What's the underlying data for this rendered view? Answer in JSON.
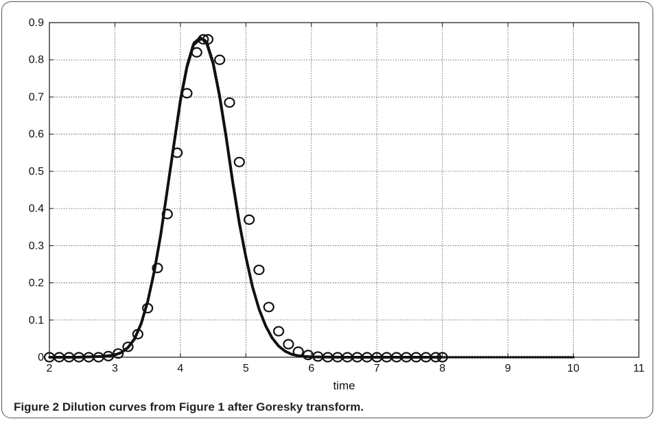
{
  "figure": {
    "label": "Figure 2",
    "caption": "Dilution curves from Figure 1 after Goresky transform."
  },
  "chart_data": {
    "type": "line",
    "title": "",
    "xlabel": "time",
    "ylabel": "",
    "xlim": [
      2,
      11
    ],
    "ylim": [
      0,
      0.9
    ],
    "xticks": [
      2,
      3,
      4,
      5,
      6,
      7,
      8,
      9,
      10,
      11
    ],
    "yticks": [
      0,
      0.1,
      0.2,
      0.3,
      0.4,
      0.5,
      0.6,
      0.7,
      0.8,
      0.9
    ],
    "grid": true,
    "legend": "none",
    "series": [
      {
        "style": "solid-line",
        "color": "#111111",
        "x": [
          2.0,
          2.4,
          2.8,
          3.0,
          3.1,
          3.2,
          3.3,
          3.4,
          3.5,
          3.6,
          3.7,
          3.8,
          3.9,
          4.0,
          4.1,
          4.2,
          4.3,
          4.35,
          4.4,
          4.5,
          4.6,
          4.7,
          4.8,
          4.9,
          5.0,
          5.1,
          5.2,
          5.3,
          5.4,
          5.5,
          5.6,
          5.7,
          5.8,
          5.9,
          6.0,
          6.5,
          7.0,
          8.0
        ],
        "y": [
          0.0,
          0.0,
          0.002,
          0.006,
          0.013,
          0.026,
          0.05,
          0.09,
          0.15,
          0.23,
          0.33,
          0.45,
          0.57,
          0.69,
          0.78,
          0.84,
          0.855,
          0.855,
          0.845,
          0.79,
          0.7,
          0.59,
          0.47,
          0.36,
          0.27,
          0.19,
          0.13,
          0.085,
          0.052,
          0.03,
          0.016,
          0.008,
          0.004,
          0.002,
          0.001,
          0.0,
          0.0,
          0.0
        ]
      },
      {
        "style": "dotted",
        "color": "#111111",
        "x": [
          2.0,
          2.5,
          2.9,
          3.1,
          3.2,
          3.3,
          3.4,
          3.5,
          3.6,
          3.7,
          3.8,
          3.9,
          4.0,
          4.1,
          4.2,
          4.3,
          4.4,
          4.5,
          4.6,
          4.7,
          4.8,
          4.9,
          5.0,
          5.1,
          5.2,
          5.3,
          5.4,
          5.5,
          5.6,
          5.7,
          5.8,
          5.9,
          6.0,
          6.5,
          7.0,
          8.0,
          9.0,
          10.0
        ],
        "y": [
          0.0,
          0.0,
          0.003,
          0.012,
          0.025,
          0.048,
          0.088,
          0.148,
          0.228,
          0.33,
          0.45,
          0.575,
          0.695,
          0.785,
          0.845,
          0.86,
          0.85,
          0.795,
          0.705,
          0.595,
          0.475,
          0.365,
          0.27,
          0.19,
          0.13,
          0.085,
          0.052,
          0.03,
          0.016,
          0.008,
          0.004,
          0.002,
          0.001,
          0.0,
          0.0,
          0.0,
          0.0,
          0.0
        ]
      },
      {
        "style": "circle-markers",
        "color": "#111111",
        "x": [
          2.0,
          2.15,
          2.3,
          2.45,
          2.6,
          2.75,
          2.9,
          3.05,
          3.2,
          3.35,
          3.5,
          3.65,
          3.8,
          3.95,
          4.1,
          4.25,
          4.35,
          4.42,
          4.6,
          4.75,
          4.9,
          5.05,
          5.2,
          5.35,
          5.5,
          5.65,
          5.8,
          5.95,
          6.1,
          6.25,
          6.4,
          6.55,
          6.7,
          6.85,
          7.0,
          7.15,
          7.3,
          7.45,
          7.6,
          7.75,
          7.9,
          8.0
        ],
        "y": [
          0.0,
          0.0,
          0.0,
          0.0,
          0.0,
          0.0,
          0.003,
          0.01,
          0.028,
          0.062,
          0.132,
          0.24,
          0.385,
          0.55,
          0.71,
          0.82,
          0.855,
          0.855,
          0.8,
          0.685,
          0.525,
          0.37,
          0.235,
          0.135,
          0.07,
          0.035,
          0.015,
          0.006,
          0.002,
          0.0,
          0.0,
          0.0,
          0.0,
          0.0,
          0.0,
          0.0,
          0.0,
          0.0,
          0.0,
          0.0,
          0.0,
          0.0
        ]
      }
    ]
  }
}
